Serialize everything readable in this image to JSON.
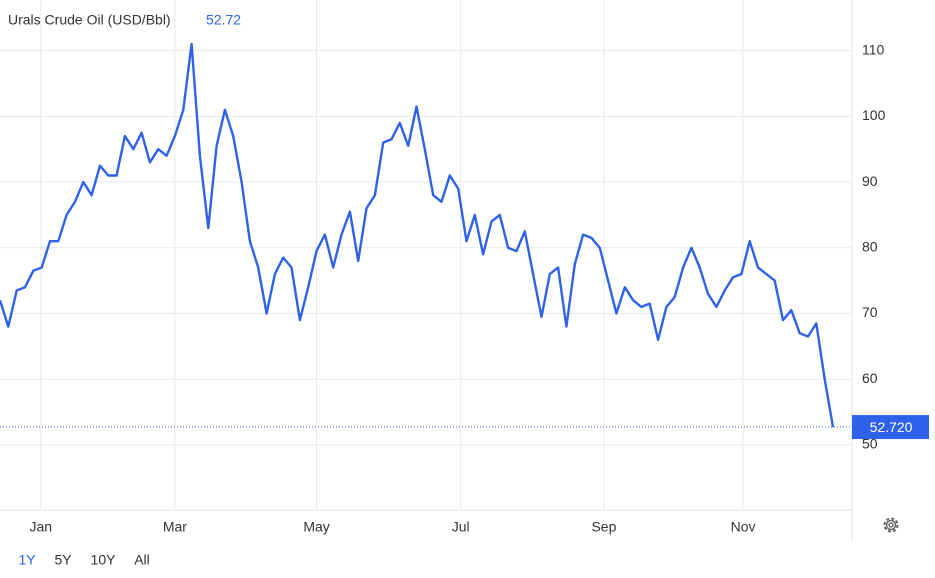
{
  "chart_data": {
    "type": "line",
    "title": "Urals Crude Oil (USD/Bbl)",
    "current_value": 52.72,
    "series": [
      {
        "name": "Urals Crude Oil",
        "color": "#2f62ea",
        "values": [
          72,
          68,
          73.5,
          74,
          76.5,
          77,
          81,
          81,
          85,
          87,
          90,
          88,
          92.5,
          91,
          91,
          97,
          95,
          97.5,
          93,
          95,
          94,
          97,
          101,
          111,
          94,
          83,
          95.5,
          101,
          97,
          90,
          81,
          77,
          70,
          76,
          78.5,
          77,
          69,
          74,
          79.5,
          82,
          77,
          82,
          85.5,
          78,
          86,
          88,
          96,
          96.5,
          99,
          95.5,
          101.5,
          95,
          88,
          87,
          91,
          89,
          81,
          85,
          79,
          84,
          85,
          80,
          79.5,
          82.5,
          76,
          69.5,
          76,
          77,
          68,
          77.5,
          82,
          81.5,
          80,
          75,
          70,
          74,
          72,
          71,
          71.5,
          66,
          71,
          72.5,
          77,
          80,
          77,
          73,
          71,
          73.5,
          75.5,
          76,
          81,
          77,
          76,
          75,
          69,
          70.5,
          67,
          66.5,
          68.5,
          60,
          52.72
        ]
      }
    ],
    "last_label": {
      "value": 52.72,
      "label": "52.720"
    },
    "xlim": [
      0,
      100
    ],
    "xticks": [
      {
        "value": 4.9,
        "label": "Jan"
      },
      {
        "value": 21,
        "label": "Mar"
      },
      {
        "value": 38,
        "label": "May"
      },
      {
        "value": 55.3,
        "label": "Jul"
      },
      {
        "value": 72.5,
        "label": "Sep"
      },
      {
        "value": 89.2,
        "label": "Nov"
      }
    ],
    "ylim": [
      40.1,
      117.7
    ],
    "yticks": [
      50,
      60,
      70,
      80,
      90,
      100,
      110
    ],
    "grid": true,
    "ranges": [
      "1Y",
      "5Y",
      "10Y",
      "All"
    ]
  }
}
